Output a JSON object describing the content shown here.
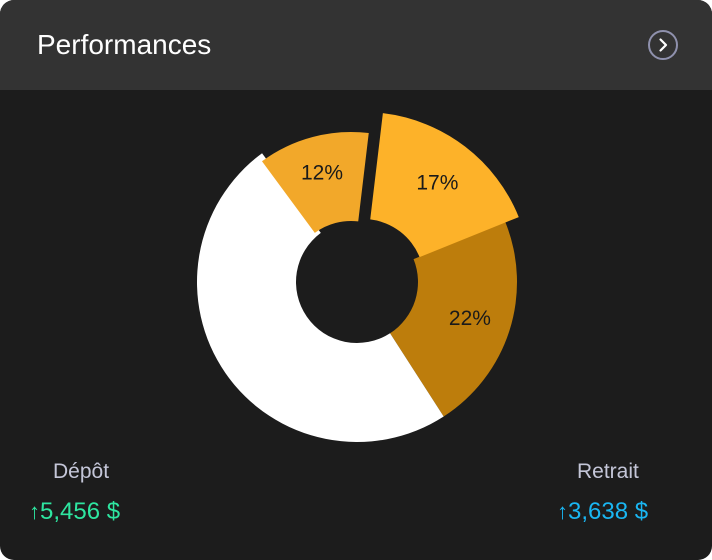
{
  "header": {
    "title": "Performances",
    "next_icon": "chevron-right-icon"
  },
  "colors": {
    "card_background": "#1c1c1c",
    "header_background": "#333333",
    "deposit": "#2ee5a0",
    "withdrawal": "#1ab6f2"
  },
  "chart_data": {
    "type": "pie",
    "style": "donut",
    "slices": [
      {
        "label": "22%",
        "value": 22,
        "color": "#bd7d0c"
      },
      {
        "label": "",
        "value": 49,
        "color": "#ffffff"
      },
      {
        "label": "12%",
        "value": 12,
        "color": "#f2a82a"
      },
      {
        "label": "17%",
        "value": 17,
        "color": "#fdb229"
      }
    ]
  },
  "stats": {
    "deposit": {
      "label": "Dépôt",
      "arrow": "↑",
      "value": "5,456 $"
    },
    "withdrawal": {
      "label": "Retrait",
      "arrow": "↑",
      "value": "3,638 $"
    }
  }
}
